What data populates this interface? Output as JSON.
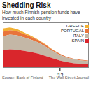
{
  "chart_data": {
    "type": "area",
    "title": "Shedding Risk",
    "subtitle": "How much Finnish pension funds have invested in each country",
    "caption": [
      "Source: Bank of Finland",
      "The Wall Street Journal"
    ],
    "x": [
      2010,
      2010.25,
      2010.5,
      2010.75,
      2011,
      2011.25,
      2011.5,
      2011.75,
      2012,
      2012.25,
      2012.5,
      2012.75,
      2013
    ],
    "series": [
      {
        "name": "GREECE",
        "color": "#f2b134",
        "values": [
          0.6,
          0.5,
          0.4,
          0.3,
          0.2,
          0.1,
          0.1,
          0.05,
          0,
          0,
          0,
          0,
          0
        ]
      },
      {
        "name": "PORTUGAL",
        "color": "#e8743b",
        "values": [
          0.8,
          0.8,
          0.7,
          0.6,
          0.5,
          0.4,
          0.3,
          0.2,
          0.2,
          0.1,
          0.1,
          0.1,
          0.1
        ]
      },
      {
        "name": "ITALY",
        "color": "#c4b7a6",
        "values": [
          2.5,
          2.6,
          2.6,
          2.4,
          2.2,
          2.0,
          1.7,
          1.3,
          1.0,
          0.8,
          0.7,
          0.6,
          0.6
        ]
      },
      {
        "name": "SPAIN",
        "color": "#d9262c",
        "values": [
          3,
          3.2,
          3.1,
          2.9,
          2.7,
          2.4,
          2.0,
          1.6,
          1.2,
          0.9,
          0.7,
          0.6,
          0.5
        ]
      }
    ],
    "xlim": [
      2010,
      2013
    ],
    "xticks": [
      {
        "value": 2012,
        "label": "'12"
      }
    ],
    "ylim": [
      0,
      8
    ],
    "stacked": true,
    "legend": "top-right",
    "tick_labels": "x"
  }
}
